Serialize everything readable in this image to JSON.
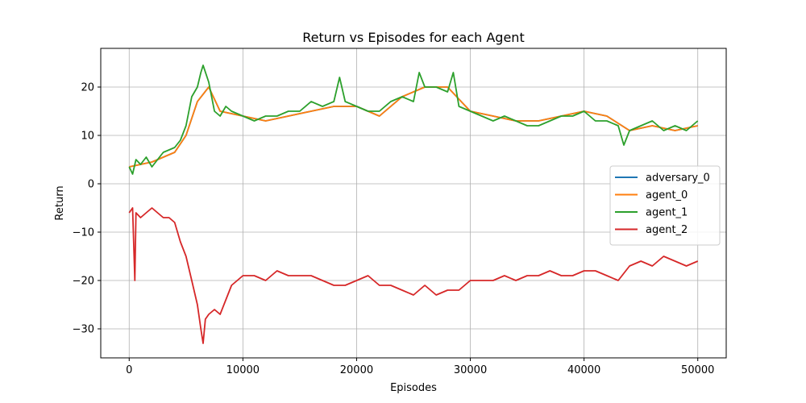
{
  "chart_data": {
    "type": "line",
    "title": "Return vs Episodes for each Agent",
    "xlabel": "Episodes",
    "ylabel": "Return",
    "xlim": [
      -2500,
      52500
    ],
    "ylim": [
      -36,
      28
    ],
    "xticks": [
      0,
      10000,
      20000,
      30000,
      40000,
      50000
    ],
    "yticks": [
      -30,
      -20,
      -10,
      0,
      10,
      20
    ],
    "grid": true,
    "legend_position": "right",
    "series": [
      {
        "name": "adversary_0",
        "color": "#1f77b4",
        "x": [
          0,
          2000,
          4000,
          5000,
          6000,
          7000,
          8000,
          10000,
          12000,
          14000,
          16000,
          18000,
          20000,
          22000,
          24000,
          26000,
          28000,
          30000,
          32000,
          34000,
          36000,
          38000,
          40000,
          42000,
          44000,
          46000,
          48000,
          50000
        ],
        "y": [
          3.5,
          4.5,
          6.5,
          10,
          17,
          20,
          15,
          14,
          13,
          14,
          15,
          16,
          16,
          14,
          18,
          20,
          20,
          15,
          14,
          13,
          13,
          14,
          15,
          14,
          11,
          12,
          11,
          12
        ]
      },
      {
        "name": "agent_0",
        "color": "#ff7f0e",
        "x": [
          0,
          2000,
          4000,
          5000,
          6000,
          7000,
          8000,
          10000,
          12000,
          14000,
          16000,
          18000,
          20000,
          22000,
          24000,
          26000,
          28000,
          30000,
          32000,
          34000,
          36000,
          38000,
          40000,
          42000,
          44000,
          46000,
          48000,
          50000
        ],
        "y": [
          3.5,
          4.5,
          6.5,
          10,
          17,
          20,
          15,
          14,
          13,
          14,
          15,
          16,
          16,
          14,
          18,
          20,
          20,
          15,
          14,
          13,
          13,
          14,
          15,
          14,
          11,
          12,
          11,
          12
        ]
      },
      {
        "name": "agent_1",
        "color": "#2ca02c",
        "x": [
          0,
          300,
          600,
          1000,
          1500,
          2000,
          2500,
          3000,
          3500,
          4000,
          4500,
          5000,
          5500,
          6000,
          6300,
          6500,
          7000,
          7500,
          8000,
          8500,
          9000,
          10000,
          11000,
          12000,
          13000,
          14000,
          15000,
          16000,
          17000,
          18000,
          18500,
          19000,
          20000,
          21000,
          22000,
          23000,
          24000,
          25000,
          25500,
          26000,
          27000,
          28000,
          28500,
          29000,
          30000,
          31000,
          32000,
          33000,
          34000,
          35000,
          36000,
          37000,
          38000,
          39000,
          40000,
          41000,
          42000,
          43000,
          43500,
          44000,
          45000,
          46000,
          47000,
          48000,
          49000,
          50000
        ],
        "y": [
          3.5,
          2,
          5,
          4,
          5.5,
          3.5,
          5,
          6.5,
          7,
          7.5,
          9,
          12,
          18,
          20,
          23,
          24.5,
          21,
          15,
          14,
          16,
          15,
          14,
          13,
          14,
          14,
          15,
          15,
          17,
          16,
          17,
          22,
          17,
          16,
          15,
          15,
          17,
          18,
          17,
          23,
          20,
          20,
          19,
          23,
          16,
          15,
          14,
          13,
          14,
          13,
          12,
          12,
          13,
          14,
          14,
          15,
          13,
          13,
          12,
          8,
          11,
          12,
          13,
          11,
          12,
          11,
          13
        ]
      },
      {
        "name": "agent_2",
        "color": "#d62728",
        "x": [
          0,
          300,
          500,
          600,
          1000,
          1500,
          2000,
          2500,
          3000,
          3500,
          4000,
          4500,
          5000,
          5500,
          6000,
          6300,
          6500,
          6700,
          7000,
          7500,
          8000,
          8500,
          9000,
          10000,
          11000,
          12000,
          13000,
          14000,
          15000,
          16000,
          17000,
          18000,
          19000,
          20000,
          21000,
          22000,
          23000,
          24000,
          25000,
          26000,
          27000,
          28000,
          29000,
          30000,
          31000,
          32000,
          33000,
          34000,
          35000,
          36000,
          37000,
          38000,
          39000,
          40000,
          41000,
          42000,
          43000,
          44000,
          45000,
          46000,
          47000,
          48000,
          49000,
          50000
        ],
        "y": [
          -6,
          -5,
          -20,
          -6,
          -7,
          -6,
          -5,
          -6,
          -7,
          -7,
          -8,
          -12,
          -15,
          -20,
          -25,
          -30,
          -33,
          -28,
          -27,
          -26,
          -27,
          -24,
          -21,
          -19,
          -19,
          -20,
          -18,
          -19,
          -19,
          -19,
          -20,
          -21,
          -21,
          -20,
          -19,
          -21,
          -21,
          -22,
          -23,
          -21,
          -23,
          -22,
          -22,
          -20,
          -20,
          -20,
          -19,
          -20,
          -19,
          -19,
          -18,
          -19,
          -19,
          -18,
          -18,
          -19,
          -20,
          -17,
          -16,
          -17,
          -15,
          -16,
          -17,
          -16
        ]
      }
    ]
  }
}
